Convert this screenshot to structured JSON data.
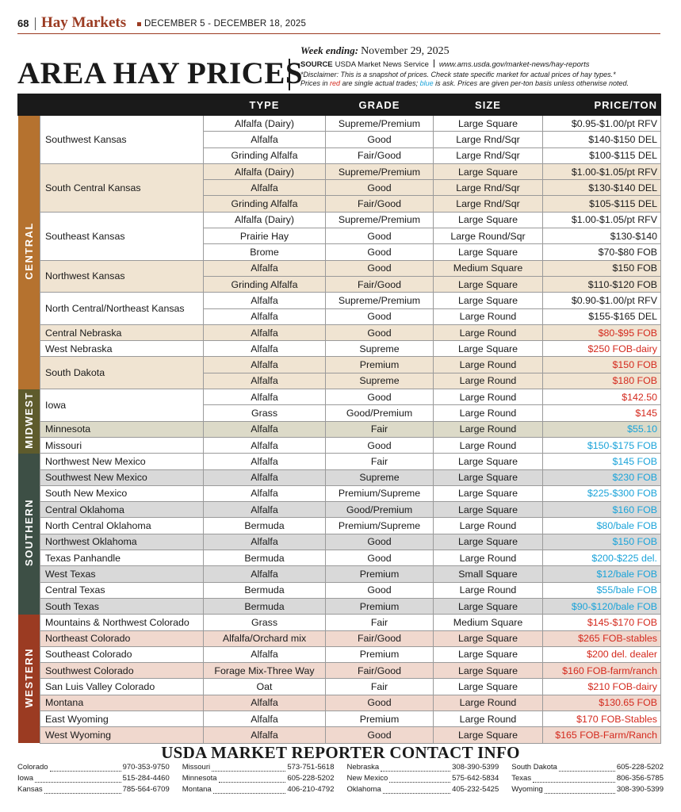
{
  "header": {
    "page_number": "68",
    "section": "Hay Markets",
    "dates": "DECEMBER 5 - DECEMBER 18, 2025"
  },
  "title": "AREA HAY PRICES",
  "week_ending_label": "Week ending:",
  "week_ending": "November 29, 2025",
  "source_label": "SOURCE",
  "source": "USDA Market News Service",
  "source_url": "www.ams.usda.gov/market-news/hay-reports",
  "disclaimer": {
    "line1": "*Disclaimer: This is a snapshot of prices. Check state specific market for actual prices of hay types.*",
    "line2": [
      "Prices in ",
      "red",
      " are single actual trades; ",
      "blue",
      " is ask. Prices are given per-ton basis unless otherwise noted."
    ]
  },
  "table": {
    "columns": [
      "TYPE",
      "GRADE",
      "SIZE",
      "PRICE/TON"
    ],
    "regions": [
      {
        "name": "CENTRAL",
        "areas": [
          {
            "name": "Southwest Kansas",
            "price_color": "#1a1a1a",
            "rows": [
              [
                "Alfalfa (Dairy)",
                "Supreme/Premium",
                "Large Square",
                "$0.95-$1.00/pt RFV"
              ],
              [
                "Alfalfa",
                "Good",
                "Large Rnd/Sqr",
                "$140-$150 DEL"
              ],
              [
                "Grinding Alfalfa",
                "Fair/Good",
                "Large Rnd/Sqr",
                "$100-$115 DEL"
              ]
            ]
          },
          {
            "name": "South Central Kansas",
            "price_color": "#1a1a1a",
            "rows": [
              [
                "Alfalfa (Dairy)",
                "Supreme/Premium",
                "Large Square",
                "$1.00-$1.05/pt RFV"
              ],
              [
                "Alfalfa",
                "Good",
                "Large Rnd/Sqr",
                "$130-$140 DEL"
              ],
              [
                "Grinding Alfalfa",
                "Fair/Good",
                "Large Rnd/Sqr",
                "$105-$115 DEL"
              ]
            ]
          },
          {
            "name": "Southeast Kansas",
            "price_color": "#1a1a1a",
            "rows": [
              [
                "Alfalfa (Dairy)",
                "Supreme/Premium",
                "Large Square",
                "$1.00-$1.05/pt RFV"
              ],
              [
                "Prairie Hay",
                "Good",
                "Large Round/Sqr",
                "$130-$140"
              ],
              [
                "Brome",
                "Good",
                "Large Square",
                "$70-$80 FOB"
              ]
            ]
          },
          {
            "name": "Northwest Kansas",
            "price_color": "#1a1a1a",
            "rows": [
              [
                "Alfalfa",
                "Good",
                "Medium Square",
                "$150 FOB"
              ],
              [
                "Grinding Alfalfa",
                "Fair/Good",
                "Large Square",
                "$110-$120 FOB"
              ]
            ]
          },
          {
            "name": "North Central/Northeast Kansas",
            "price_color": "#1a1a1a",
            "rows": [
              [
                "Alfalfa",
                "Supreme/Premium",
                "Large Square",
                "$0.90-$1.00/pt RFV"
              ],
              [
                "Alfalfa",
                "Good",
                "Large Round",
                "$155-$165 DEL"
              ]
            ]
          },
          {
            "name": "Central Nebraska",
            "price_color": "#d42a1e",
            "rows": [
              [
                "Alfalfa",
                "Good",
                "Large Round",
                "$80-$95 FOB"
              ]
            ]
          },
          {
            "name": "West Nebraska",
            "price_color": "#d42a1e",
            "rows": [
              [
                "Alfalfa",
                "Supreme",
                "Large Square",
                "$250 FOB-dairy"
              ]
            ]
          },
          {
            "name": "South Dakota",
            "price_color": "#d42a1e",
            "rows": [
              [
                "Alfalfa",
                "Premium",
                "Large Round",
                "$150 FOB"
              ],
              [
                "Alfalfa",
                "Supreme",
                "Large Round",
                "$180 FOB"
              ]
            ]
          }
        ]
      },
      {
        "name": "MIDWEST",
        "areas": [
          {
            "name": "Iowa",
            "price_color": "#d42a1e",
            "rows": [
              [
                "Alfalfa",
                "Good",
                "Large Round",
                "$142.50"
              ],
              [
                "Grass",
                "Good/Premium",
                "Large Round",
                "$145"
              ]
            ]
          },
          {
            "name": "Minnesota",
            "price_color": "#1aa3d9",
            "rows": [
              [
                "Alfalfa",
                "Fair",
                "Large Round",
                "$55.10"
              ]
            ]
          },
          {
            "name": "Missouri",
            "price_color": "#1aa3d9",
            "rows": [
              [
                "Alfalfa",
                "Good",
                "Large Round",
                "$150-$175 FOB"
              ]
            ]
          }
        ]
      },
      {
        "name": "SOUTHERN",
        "areas": [
          {
            "name": "Northwest New Mexico",
            "price_color": "#1aa3d9",
            "rows": [
              [
                "Alfalfa",
                "Fair",
                "Large Square",
                "$145 FOB"
              ]
            ]
          },
          {
            "name": "Southwest New Mexico",
            "price_color": "#1aa3d9",
            "rows": [
              [
                "Alfalfa",
                "Supreme",
                "Large Square",
                "$230 FOB"
              ]
            ]
          },
          {
            "name": "South New Mexico",
            "price_color": "#1aa3d9",
            "rows": [
              [
                "Alfalfa",
                "Premium/Supreme",
                "Large Square",
                "$225-$300 FOB"
              ]
            ]
          },
          {
            "name": "Central Oklahoma",
            "price_color": "#1aa3d9",
            "rows": [
              [
                "Alfalfa",
                "Good/Premium",
                "Large Square",
                "$160 FOB"
              ]
            ]
          },
          {
            "name": "North Central Oklahoma",
            "price_color": "#1aa3d9",
            "rows": [
              [
                "Bermuda",
                "Premium/Supreme",
                "Large Round",
                "$80/bale FOB"
              ]
            ]
          },
          {
            "name": "Northwest Oklahoma",
            "price_color": "#1aa3d9",
            "rows": [
              [
                "Alfalfa",
                "Good",
                "Large Square",
                "$150 FOB"
              ]
            ]
          },
          {
            "name": "Texas Panhandle",
            "price_color": "#1aa3d9",
            "rows": [
              [
                "Bermuda",
                "Good",
                "Large Round",
                "$200-$225 del."
              ]
            ]
          },
          {
            "name": "West Texas",
            "price_color": "#1aa3d9",
            "rows": [
              [
                "Alfalfa",
                "Premium",
                "Small Square",
                "$12/bale FOB"
              ]
            ]
          },
          {
            "name": "Central Texas",
            "price_color": "#1aa3d9",
            "rows": [
              [
                "Bermuda",
                "Good",
                "Large Round",
                "$55/bale FOB"
              ]
            ]
          },
          {
            "name": "South Texas",
            "price_color": "#1aa3d9",
            "rows": [
              [
                "Bermuda",
                "Premium",
                "Large Square",
                "$90-$120/bale FOB"
              ]
            ]
          }
        ]
      },
      {
        "name": "WESTERN",
        "areas": [
          {
            "name": "Mountains & Northwest Colorado",
            "price_color": "#d42a1e",
            "rows": [
              [
                "Grass",
                "Fair",
                "Medium Square",
                "$145-$170 FOB"
              ]
            ]
          },
          {
            "name": "Northeast Colorado",
            "price_color": "#d42a1e",
            "rows": [
              [
                "Alfalfa/Orchard mix",
                "Fair/Good",
                "Large Square",
                "$265 FOB-stables"
              ]
            ]
          },
          {
            "name": "Southeast Colorado",
            "price_color": "#d42a1e",
            "rows": [
              [
                "Alfalfa",
                "Premium",
                "Large Square",
                "$200 del. dealer"
              ]
            ]
          },
          {
            "name": "Southwest Colorado",
            "price_color": "#d42a1e",
            "rows": [
              [
                "Forage Mix-Three Way",
                "Fair/Good",
                "Large Square",
                "$160 FOB-farm/ranch"
              ]
            ]
          },
          {
            "name": "San Luis Valley Colorado",
            "price_color": "#d42a1e",
            "rows": [
              [
                "Oat",
                "Fair",
                "Large Square",
                "$210 FOB-dairy"
              ]
            ]
          },
          {
            "name": "Montana",
            "price_color": "#d42a1e",
            "rows": [
              [
                "Alfalfa",
                "Good",
                "Large Round",
                "$130.65 FOB"
              ]
            ]
          },
          {
            "name": "East Wyoming",
            "price_color": "#d42a1e",
            "rows": [
              [
                "Alfalfa",
                "Premium",
                "Large Round",
                "$170 FOB-Stables"
              ]
            ]
          },
          {
            "name": "West Wyoming",
            "price_color": "#d42a1e",
            "rows": [
              [
                "Alfalfa",
                "Good",
                "Large Square",
                "$165 FOB-Farm/Ranch"
              ]
            ]
          }
        ]
      }
    ]
  },
  "contacts": {
    "title": "USDA MARKET REPORTER CONTACT INFO",
    "entries": [
      [
        "Colorado",
        "970-353-9750"
      ],
      [
        "Iowa",
        "515-284-4460"
      ],
      [
        "Kansas",
        "785-564-6709"
      ],
      [
        "Missouri",
        "573-751-5618"
      ],
      [
        "Minnesota",
        "605-228-5202"
      ],
      [
        "Montana",
        "406-210-4792"
      ],
      [
        "Nebraska",
        "308-390-5399"
      ],
      [
        "New Mexico",
        "575-642-5834"
      ],
      [
        "Oklahoma",
        "405-232-5425"
      ],
      [
        "South Dakota",
        "605-228-5202"
      ],
      [
        "Texas",
        "806-356-5785"
      ],
      [
        "Wyoming",
        "308-390-5399"
      ]
    ]
  }
}
